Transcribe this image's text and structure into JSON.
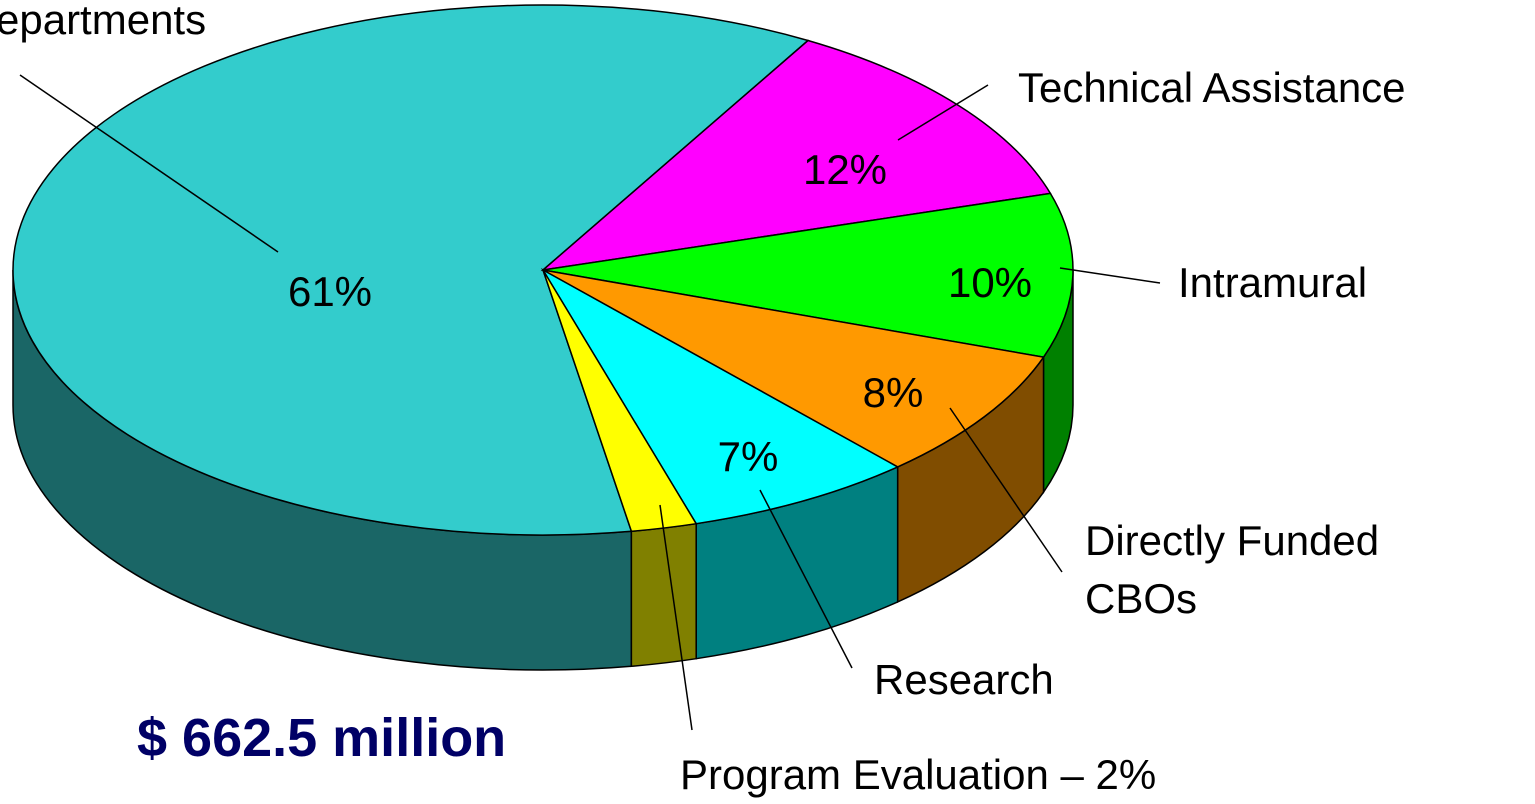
{
  "chart_data": {
    "type": "pie",
    "style": "3d",
    "categories": [
      "epartments",
      "Technical Assistance",
      "Intramural",
      "Directly Funded\nCBOs",
      "Research",
      "Program Evaluation – 2%"
    ],
    "values": [
      61,
      12,
      10,
      8,
      7,
      2
    ],
    "value_labels": [
      "61%",
      "12%",
      "10%",
      "8%",
      "7%",
      null
    ],
    "colors": [
      "#33CCCC",
      "#FF00FF",
      "#00FF00",
      "#FF9900",
      "#00FFFF",
      "#FFFF00"
    ],
    "annotation": "$ 662.5 million"
  }
}
